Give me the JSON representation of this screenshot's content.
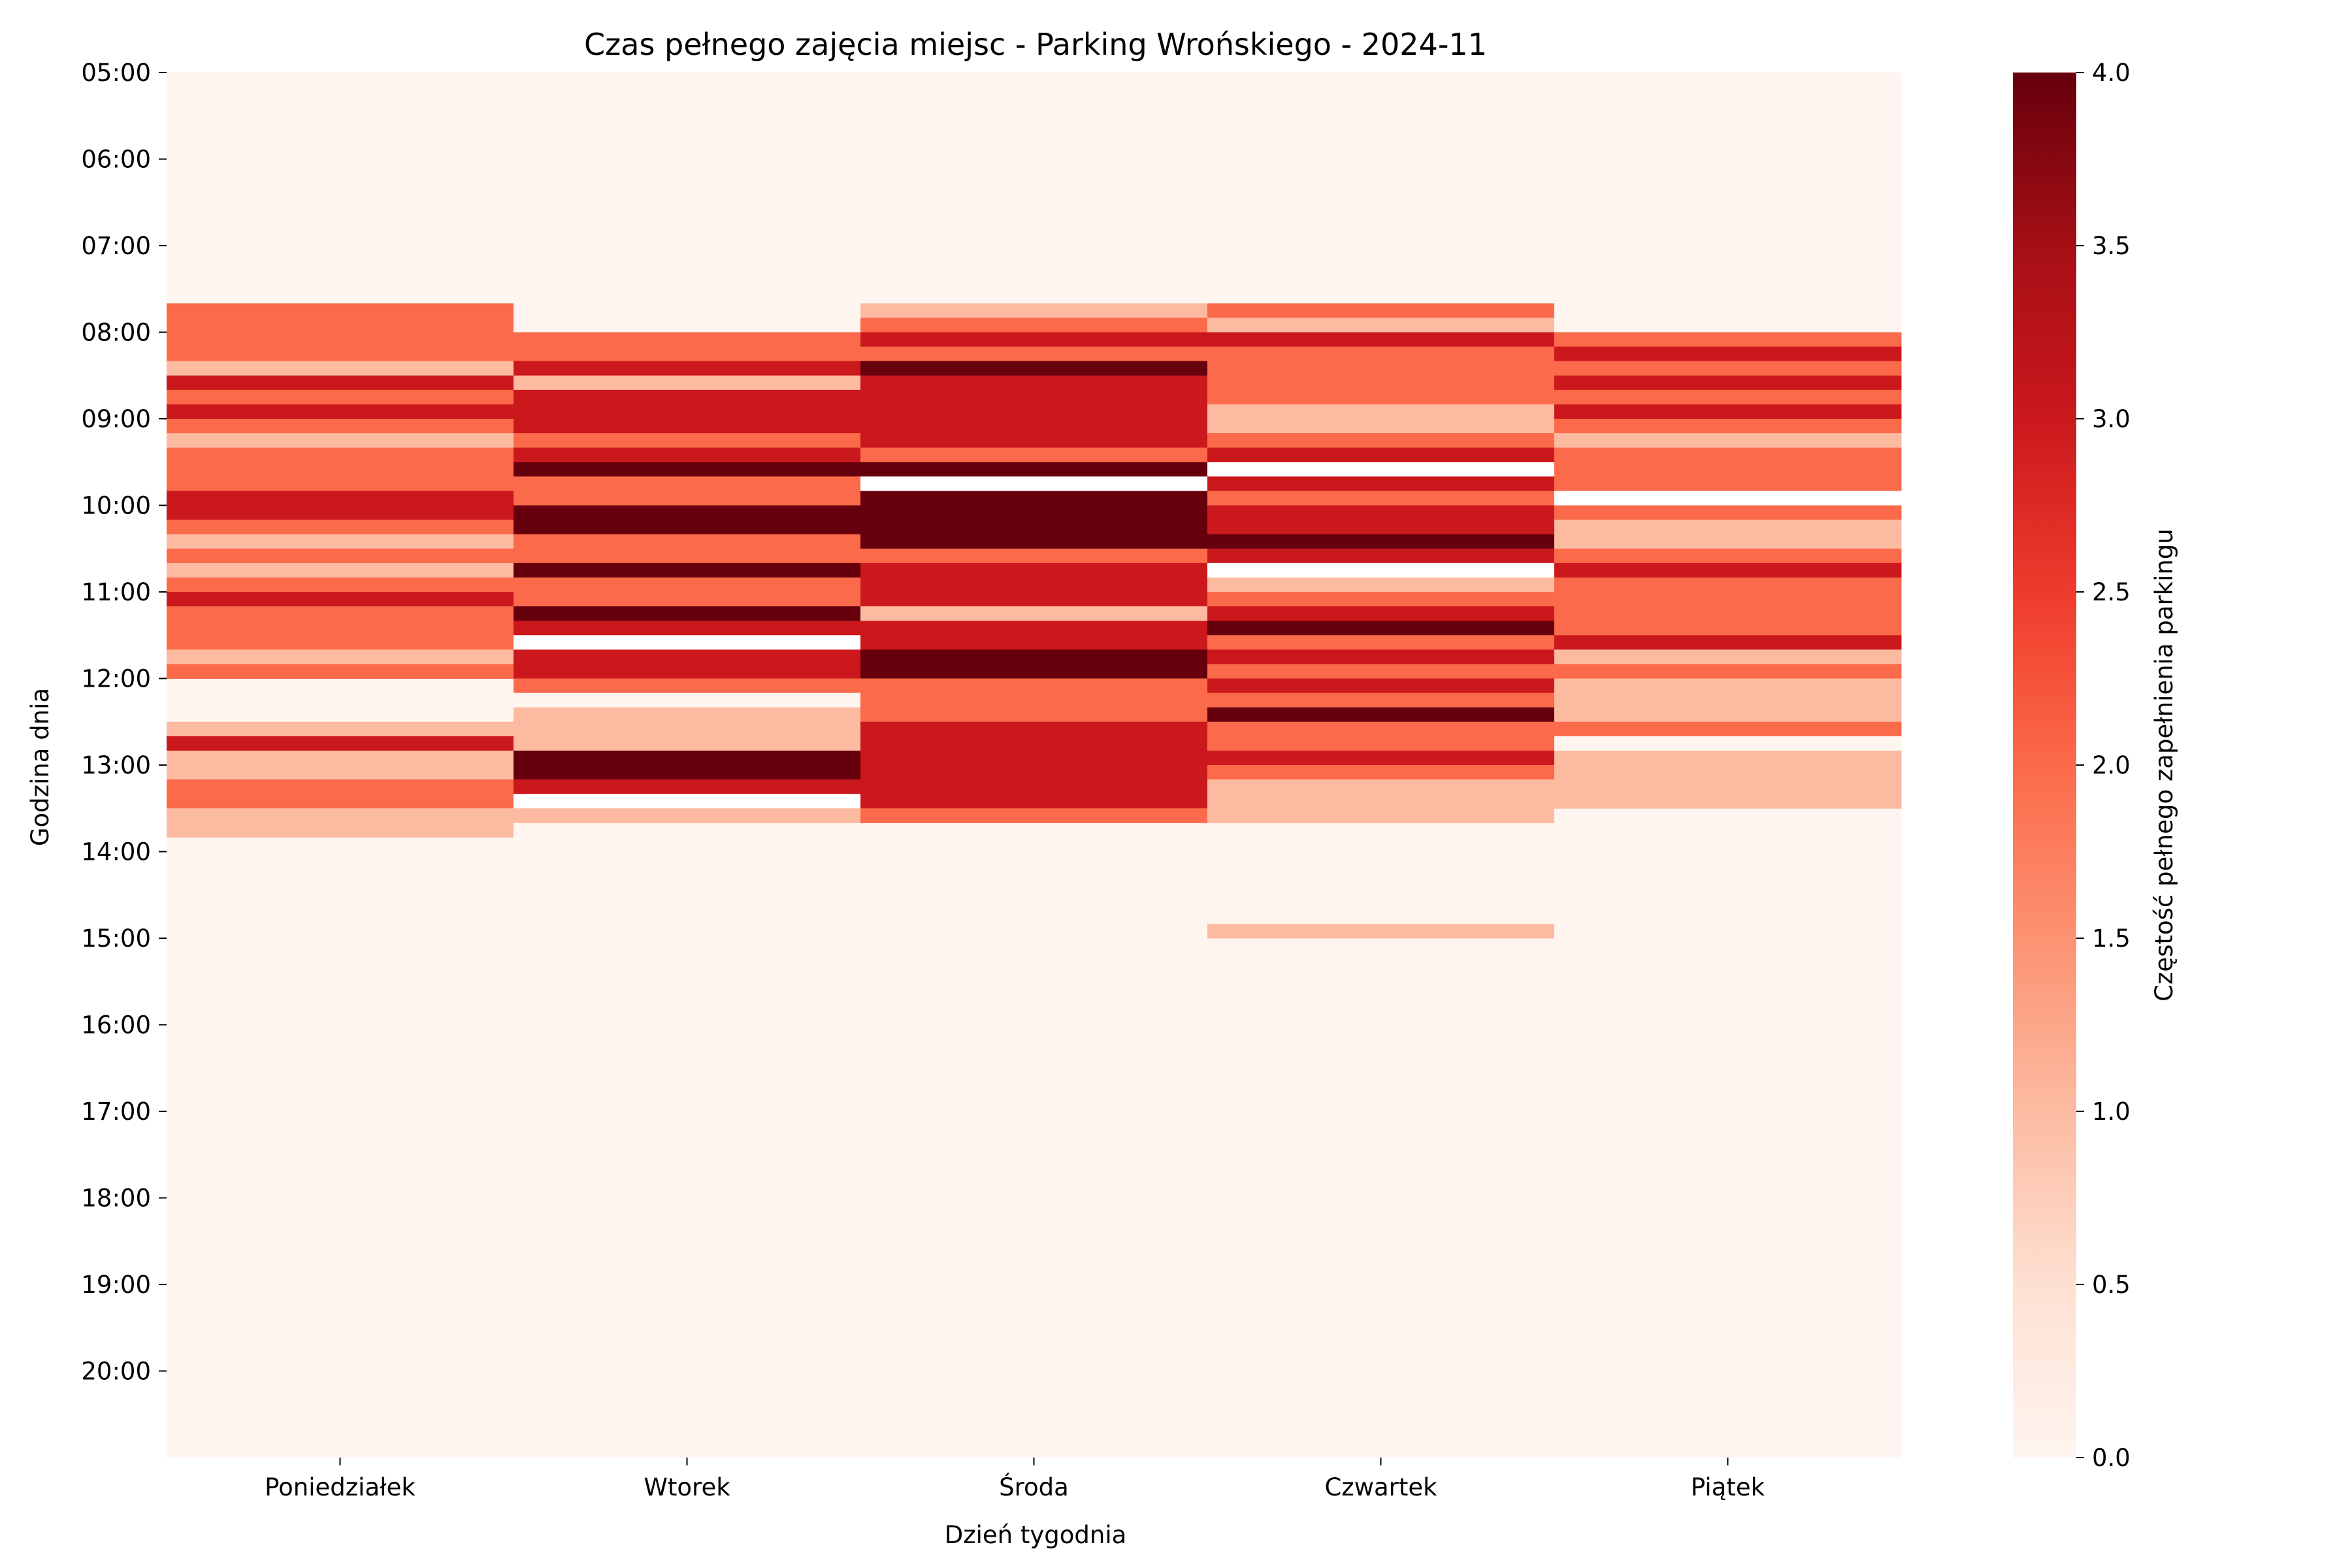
{
  "chart_data": {
    "type": "heatmap",
    "title": "Czas pełnego zajęcia miejsc - Parking Wrońskiego - 2024-11",
    "xlabel": "Dzień tygodnia",
    "ylabel": "Godzina dnia",
    "colorbar_label": "Częstość pełnego zapełnienia parkingu",
    "colormap": "Reds",
    "vmin": 0,
    "vmax": 4,
    "colorbar_ticks": [
      "0.0",
      "0.5",
      "1.0",
      "1.5",
      "2.0",
      "2.5",
      "3.0",
      "3.5",
      "4.0"
    ],
    "x_categories": [
      "Poniedziałek",
      "Wtorek",
      "Środa",
      "Czwartek",
      "Piątek"
    ],
    "y_tick_labels": [
      "05:00",
      "06:00",
      "07:00",
      "08:00",
      "09:00",
      "10:00",
      "11:00",
      "12:00",
      "13:00",
      "14:00",
      "15:00",
      "16:00",
      "17:00",
      "18:00",
      "19:00",
      "20:00"
    ],
    "y_range": [
      "05:00",
      "21:00"
    ],
    "slot_minutes": 10,
    "slots_per_hour": 6,
    "grid": false,
    "background_value": 0,
    "blank_color": "#ffffff",
    "notes": "Intervals [start, end, value] per day; times as HH:MM within y_range; value null = no data (blank).",
    "series": [
      {
        "name": "Poniedziałek",
        "intervals": [
          [
            "07:40",
            "08:20",
            2
          ],
          [
            "08:20",
            "08:30",
            1
          ],
          [
            "08:30",
            "08:40",
            3
          ],
          [
            "08:40",
            "08:50",
            2
          ],
          [
            "08:50",
            "09:00",
            3
          ],
          [
            "09:00",
            "09:10",
            2
          ],
          [
            "09:10",
            "09:20",
            1
          ],
          [
            "09:20",
            "09:50",
            2
          ],
          [
            "09:50",
            "10:10",
            3
          ],
          [
            "10:10",
            "10:20",
            2
          ],
          [
            "10:20",
            "10:30",
            1
          ],
          [
            "10:30",
            "10:40",
            2
          ],
          [
            "10:40",
            "10:50",
            1
          ],
          [
            "10:50",
            "11:00",
            2
          ],
          [
            "11:00",
            "11:10",
            3
          ],
          [
            "11:10",
            "11:40",
            2
          ],
          [
            "11:40",
            "11:50",
            1
          ],
          [
            "11:50",
            "12:00",
            2
          ],
          [
            "12:30",
            "12:40",
            1
          ],
          [
            "12:40",
            "12:50",
            3
          ],
          [
            "12:50",
            "13:10",
            1
          ],
          [
            "13:10",
            "13:30",
            2
          ],
          [
            "13:30",
            "13:50",
            1
          ]
        ]
      },
      {
        "name": "Wtorek",
        "intervals": [
          [
            "08:00",
            "08:20",
            2
          ],
          [
            "08:20",
            "08:30",
            3
          ],
          [
            "08:30",
            "08:40",
            1
          ],
          [
            "08:40",
            "09:10",
            3
          ],
          [
            "09:10",
            "09:20",
            2
          ],
          [
            "09:20",
            "09:30",
            3
          ],
          [
            "09:30",
            "09:40",
            4
          ],
          [
            "09:40",
            "10:00",
            2
          ],
          [
            "10:00",
            "10:20",
            4
          ],
          [
            "10:20",
            "10:40",
            2
          ],
          [
            "10:40",
            "10:50",
            4
          ],
          [
            "10:50",
            "11:10",
            2
          ],
          [
            "11:10",
            "11:20",
            4
          ],
          [
            "11:20",
            "11:30",
            3
          ],
          [
            "11:30",
            "11:40",
            null
          ],
          [
            "11:40",
            "12:00",
            3
          ],
          [
            "12:00",
            "12:10",
            2
          ],
          [
            "12:10",
            "12:20",
            0
          ],
          [
            "12:20",
            "12:50",
            1
          ],
          [
            "12:50",
            "13:10",
            4
          ],
          [
            "13:10",
            "13:20",
            3
          ],
          [
            "13:20",
            "13:30",
            null
          ],
          [
            "13:30",
            "13:40",
            1
          ]
        ]
      },
      {
        "name": "Środa",
        "intervals": [
          [
            "07:40",
            "07:50",
            1
          ],
          [
            "07:50",
            "08:00",
            2
          ],
          [
            "08:00",
            "08:10",
            3
          ],
          [
            "08:10",
            "08:20",
            2
          ],
          [
            "08:20",
            "08:30",
            4
          ],
          [
            "08:30",
            "09:20",
            3
          ],
          [
            "09:20",
            "09:30",
            2
          ],
          [
            "09:30",
            "09:40",
            4
          ],
          [
            "09:40",
            "09:50",
            null
          ],
          [
            "09:50",
            "10:30",
            4
          ],
          [
            "10:30",
            "10:40",
            2
          ],
          [
            "10:40",
            "11:10",
            3
          ],
          [
            "11:10",
            "11:20",
            1
          ],
          [
            "11:20",
            "11:40",
            3
          ],
          [
            "11:40",
            "12:00",
            4
          ],
          [
            "12:00",
            "12:30",
            2
          ],
          [
            "12:30",
            "13:30",
            3
          ],
          [
            "13:30",
            "13:40",
            2
          ]
        ]
      },
      {
        "name": "Czwartek",
        "intervals": [
          [
            "07:40",
            "07:50",
            2
          ],
          [
            "07:50",
            "08:00",
            1
          ],
          [
            "08:00",
            "08:10",
            3
          ],
          [
            "08:10",
            "08:50",
            2
          ],
          [
            "08:50",
            "09:10",
            1
          ],
          [
            "09:10",
            "09:20",
            2
          ],
          [
            "09:20",
            "09:30",
            3
          ],
          [
            "09:30",
            "09:40",
            null
          ],
          [
            "09:40",
            "09:50",
            3
          ],
          [
            "09:50",
            "10:00",
            2
          ],
          [
            "10:00",
            "10:20",
            3
          ],
          [
            "10:20",
            "10:30",
            4
          ],
          [
            "10:30",
            "10:40",
            3
          ],
          [
            "10:40",
            "10:50",
            null
          ],
          [
            "10:50",
            "11:00",
            1
          ],
          [
            "11:00",
            "11:10",
            2
          ],
          [
            "11:10",
            "11:20",
            3
          ],
          [
            "11:20",
            "11:30",
            4
          ],
          [
            "11:30",
            "11:40",
            2
          ],
          [
            "11:40",
            "11:50",
            3
          ],
          [
            "11:50",
            "12:00",
            2
          ],
          [
            "12:00",
            "12:10",
            3
          ],
          [
            "12:10",
            "12:20",
            2
          ],
          [
            "12:20",
            "12:30",
            4
          ],
          [
            "12:30",
            "12:50",
            2
          ],
          [
            "12:50",
            "13:00",
            3
          ],
          [
            "13:00",
            "13:10",
            2
          ],
          [
            "13:10",
            "13:40",
            1
          ],
          [
            "14:50",
            "15:00",
            1
          ]
        ]
      },
      {
        "name": "Piątek",
        "intervals": [
          [
            "08:00",
            "08:10",
            2
          ],
          [
            "08:10",
            "08:20",
            3
          ],
          [
            "08:20",
            "08:30",
            2
          ],
          [
            "08:30",
            "08:40",
            3
          ],
          [
            "08:40",
            "08:50",
            2
          ],
          [
            "08:50",
            "09:00",
            3
          ],
          [
            "09:00",
            "09:10",
            2
          ],
          [
            "09:10",
            "09:20",
            1
          ],
          [
            "09:20",
            "09:50",
            2
          ],
          [
            "09:50",
            "10:00",
            null
          ],
          [
            "10:00",
            "10:10",
            2
          ],
          [
            "10:10",
            "10:30",
            1
          ],
          [
            "10:30",
            "10:40",
            2
          ],
          [
            "10:40",
            "10:50",
            3
          ],
          [
            "10:50",
            "11:30",
            2
          ],
          [
            "11:30",
            "11:40",
            3
          ],
          [
            "11:40",
            "11:50",
            1
          ],
          [
            "11:50",
            "12:00",
            2
          ],
          [
            "12:00",
            "12:30",
            1
          ],
          [
            "12:30",
            "12:40",
            2
          ],
          [
            "12:40",
            "12:50",
            0
          ],
          [
            "12:50",
            "13:30",
            1
          ]
        ]
      }
    ]
  }
}
